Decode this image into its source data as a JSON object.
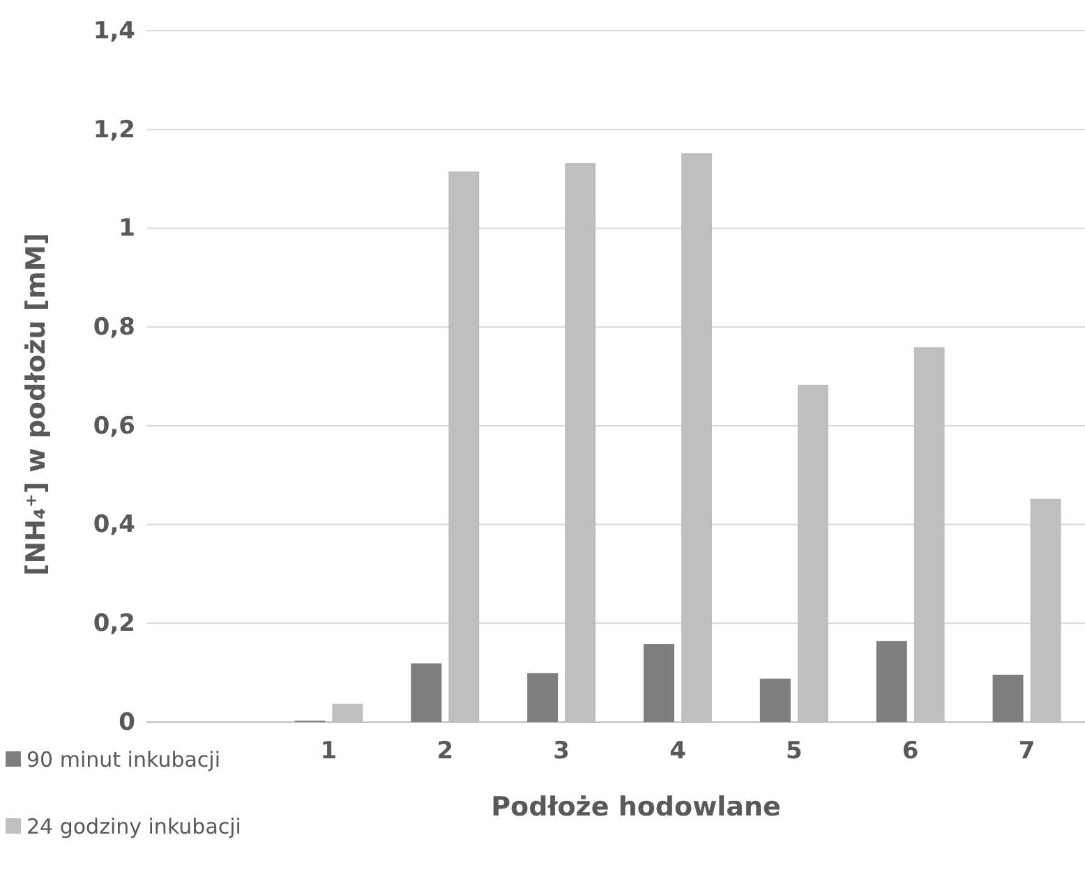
{
  "chart_data": {
    "type": "bar",
    "xlabel": "Podłoże hodowlane",
    "ylabel": "[NH₄⁺] w podłożu [mM]",
    "categories": [
      "1",
      "2",
      "3",
      "4",
      "5",
      "6",
      "7"
    ],
    "series": [
      {
        "name": "90 minut inkubacji",
        "color": "#7f7f7f",
        "values": [
          0.003,
          0.119,
          0.099,
          0.158,
          0.088,
          0.164,
          0.096
        ]
      },
      {
        "name": "24 godziny inkubacji",
        "color": "#bfbfbf",
        "values": [
          0.037,
          1.115,
          1.132,
          1.152,
          0.683,
          0.759,
          0.452
        ]
      }
    ],
    "ylim": [
      0,
      1.4
    ],
    "yticks": [
      {
        "value": 0,
        "label": "0"
      },
      {
        "value": 0.2,
        "label": "0,2"
      },
      {
        "value": 0.4,
        "label": "0,4"
      },
      {
        "value": 0.6,
        "label": "0,6"
      },
      {
        "value": 0.8,
        "label": "0,8"
      },
      {
        "value": 1,
        "label": "1"
      },
      {
        "value": 1.2,
        "label": "1,2"
      },
      {
        "value": 1.4,
        "label": "1,4"
      }
    ],
    "grid": "y",
    "legend": "bottom left"
  }
}
